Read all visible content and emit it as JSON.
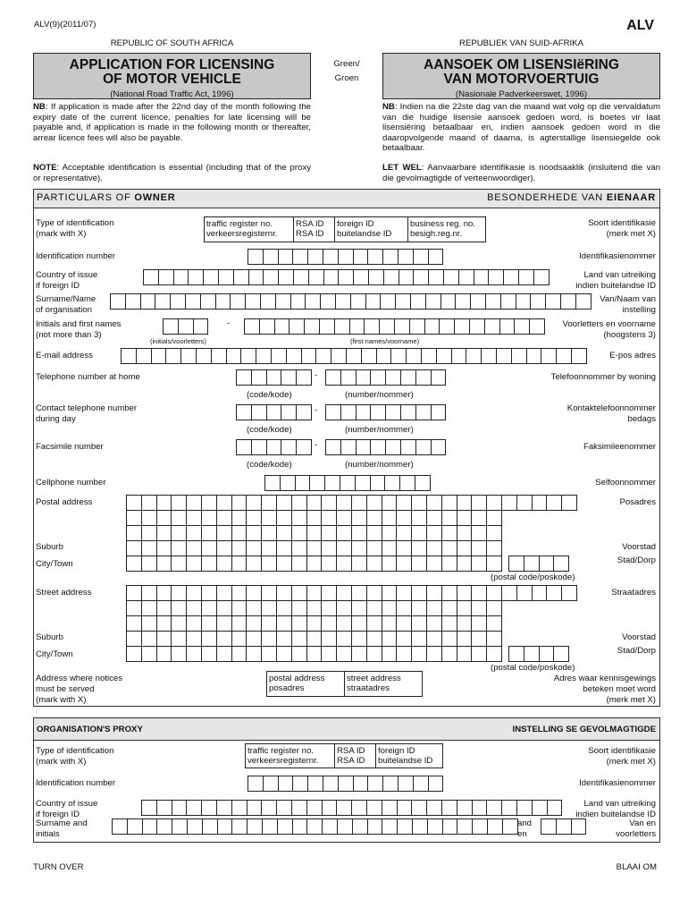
{
  "header": {
    "form_code": "ALV(9)(2011/07)",
    "form_id": "ALV",
    "country_en": "REPUBLIC OF SOUTH AFRICA",
    "country_af": "REPUBLIEK VAN SUID-AFRIKA",
    "title_en_1": "APPLICATION FOR LICENSING",
    "title_en_2": "OF MOTOR VEHICLE",
    "act_en": "(National Road Traffic Act, 1996)",
    "title_af_1": "AANSOEK OM LISENSIëRING",
    "title_af_2": "VAN MOTORVOERTUIG",
    "act_af": "(Nasionale Padverkeerswet, 1996)",
    "colour_1": "Green/",
    "colour_2": "Groen"
  },
  "notes": {
    "nb_en_label": "NB",
    "nb_en": ": If application is made after the 22nd day of the month following the expiry date of the current licence, penalties for late licensing will be payable and, if application is made in the following month or thereafter, arrear licence fees will also be payable.",
    "nb_af_label": "NB",
    "nb_af": ": Indien na die 22ste dag van die maand wat volg op die vervaldatum van die huidige lisensie aansoek gedoen word, is boetes vir laat lisensiëring betaalbaar en, indien aansoek gedoen word in die daaropvolgende maand of daarna, is agterstallige lisensiegelde ook betaalbaar.",
    "note_en_label": "NOTE",
    "note_en": ": Acceptable identification is essential (including that of the proxy or representative).",
    "note_af_label": "LET WEL",
    "note_af": ": Aanvaarbare identifikasie is noodsaaklik (insluitend die van die gevolmagtigde of verteenwoordiger)."
  },
  "owner": {
    "head_en_a": "PARTICULARS OF ",
    "head_en_b": "OWNER",
    "head_af_a": "BESONDERHEDE VAN ",
    "head_af_b": "EIENAAR",
    "type_id": {
      "en1": "Type of identification",
      "en2": "(mark with X)",
      "af1": "Soort identifikasie",
      "af2": "(merk met X)",
      "options": [
        {
          "l1": "traffic register no.",
          "l2": "verkeersregisternr."
        },
        {
          "l1": "RSA ID",
          "l2": "RSA ID"
        },
        {
          "l1": "foreign ID",
          "l2": "buitelandse ID"
        },
        {
          "l1": "business reg. no.",
          "l2": "besigh.reg.nr."
        }
      ]
    },
    "id_number": {
      "en": "Identification number",
      "af": "Identifikasienommer"
    },
    "country": {
      "en1": "Country of issue",
      "en2": "if foreign ID",
      "af1": "Land van uitreiking",
      "af2": "indien buitelandse ID"
    },
    "surname": {
      "en1": "Surname/Name",
      "en2": "of organisation",
      "af1": "Van/Naam van",
      "af2": "instelling"
    },
    "initials": {
      "en1": "Initials and first names",
      "en2": "(not more than 3)",
      "af1": "Voorletters en voorname",
      "af2": "(hoogstens 3)",
      "sub_initials": "(initials/voorletters)",
      "sub_names": "(first names/voorname)",
      "dash": "-"
    },
    "email": {
      "en": "E-mail address",
      "af": "E-pos adres"
    },
    "tel_home": {
      "en": "Telephone number at home",
      "af": "Telefoonnommer by woning"
    },
    "tel_day": {
      "en1": "Contact telephone number",
      "en2": "during day",
      "af1": "Kontaktelefoonnommer",
      "af2": "bedags"
    },
    "fax": {
      "en": "Facsimile number",
      "af": "Faksimileenommer"
    },
    "cell": {
      "en": "Cellphone number",
      "af": "Selfoonnommer"
    },
    "sub_code": "(code/kode)",
    "sub_number": "(number/nommer)",
    "dash": "-",
    "postal": {
      "en": "Postal address",
      "af": "Posadres"
    },
    "street": {
      "en": "Street address",
      "af": "Straatadres"
    },
    "suburb": {
      "en": "Suburb",
      "af": "Voorstad"
    },
    "city": {
      "en": "City/Town",
      "af": "Stad/Dorp"
    },
    "postal_code": "(postal code/poskode)",
    "notices": {
      "en1": "Address where notices",
      "en2": "must be served",
      "en3": "(mark with X)",
      "af1": "Adres waar kennisgewings",
      "af2": "beteken moet word",
      "af3": "(merk met X)",
      "options": [
        {
          "l1": "postal address",
          "l2": "posadres"
        },
        {
          "l1": "street address",
          "l2": "straatadres"
        }
      ]
    }
  },
  "proxy": {
    "head_en": "ORGANISATION'S PROXY",
    "head_af": "INSTELLING SE GEVOLMAGTIGDE",
    "type_id": {
      "en1": "Type of identification",
      "en2": "(mark with X)",
      "af1": "Soort identifikasie",
      "af2": "(merk met X)",
      "options": [
        {
          "l1": "traffic register no.",
          "l2": "verkeersregisternr."
        },
        {
          "l1": "RSA ID",
          "l2": "RSA ID"
        },
        {
          "l1": "foreign ID",
          "l2": "buitelandse ID"
        }
      ]
    },
    "id_number": {
      "en": "Identification number",
      "af": "Identifikasienommer"
    },
    "country": {
      "en1": "Country of issue",
      "en2": "if foreign ID",
      "af1": "Land van uitreiking",
      "af2": "indien buitelandse ID"
    },
    "surname": {
      "en1": "Surname and",
      "en2": "initials",
      "and1": "and",
      "and2": "en",
      "af1": "Van en",
      "af2": "voorletters"
    }
  },
  "footer": {
    "en": "TURN OVER",
    "af": "BLAAI OM"
  }
}
